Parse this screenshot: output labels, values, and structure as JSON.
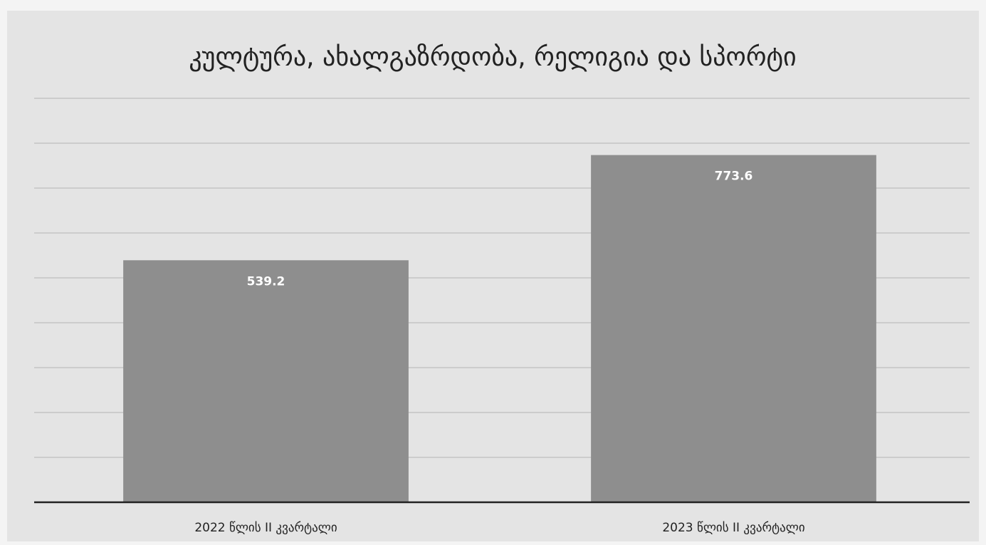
{
  "chart_data": {
    "type": "bar",
    "title": "კულტურა, ახალგაზრდობა, რელიგია და სპორტი",
    "categories": [
      "2022 წლის II კვარტალი",
      "2023 წლის II კვარტალი"
    ],
    "values": [
      539.2,
      773.6
    ],
    "color": "#8e8e8e",
    "ylim": [
      0,
      900
    ],
    "yticks": [
      0,
      100,
      200,
      300,
      400,
      500,
      600,
      700,
      800,
      900
    ],
    "grid": true
  }
}
